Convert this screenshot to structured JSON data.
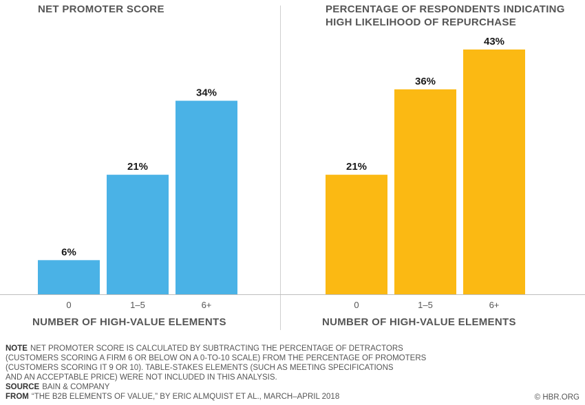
{
  "chart_data": [
    {
      "type": "bar",
      "title": "NET PROMOTER SCORE",
      "title_lines": [
        "NET PROMOTER SCORE"
      ],
      "categories": [
        "0",
        "1–5",
        "6+"
      ],
      "values": [
        6,
        21,
        34
      ],
      "value_labels": [
        "6%",
        "21%",
        "34%"
      ],
      "xlabel": "NUMBER OF HIGH-VALUE ELEMENTS",
      "ylabel": "",
      "ylim": [
        0,
        43
      ],
      "color": "#4AB2E6"
    },
    {
      "type": "bar",
      "title": "PERCENTAGE OF RESPONDENTS INDICATING HIGH LIKELIHOOD OF REPURCHASE",
      "title_lines": [
        "PERCENTAGE OF RESPONDENTS INDICATING",
        "HIGH LIKELIHOOD OF REPURCHASE"
      ],
      "categories": [
        "0",
        "1–5",
        "6+"
      ],
      "values": [
        21,
        36,
        43
      ],
      "value_labels": [
        "21%",
        "36%",
        "43%"
      ],
      "xlabel": "NUMBER OF HIGH-VALUE ELEMENTS",
      "ylabel": "",
      "ylim": [
        0,
        43
      ],
      "color": "#FBB913"
    }
  ],
  "notes": {
    "note_label": "NOTE",
    "note_lines": [
      "NET PROMOTER SCORE IS CALCULATED BY SUBTRACTING THE PERCENTAGE OF DETRACTORS",
      "(CUSTOMERS SCORING A FIRM 6 OR BELOW ON A 0-TO-10 SCALE) FROM THE PERCENTAGE OF PROMOTERS",
      "(CUSTOMERS SCORING IT 9 OR 10). TABLE-STAKES ELEMENTS (SUCH AS MEETING SPECIFICATIONS",
      "AND AN ACCEPTABLE PRICE) WERE NOT INCLUDED IN THIS ANALYSIS."
    ],
    "source_label": "SOURCE",
    "source_text": "BAIN & COMPANY",
    "from_label": "FROM",
    "from_text": "“THE B2B ELEMENTS OF VALUE,” BY ERIC ALMQUIST ET AL., MARCH–APRIL 2018"
  },
  "credit": "© HBR.ORG"
}
